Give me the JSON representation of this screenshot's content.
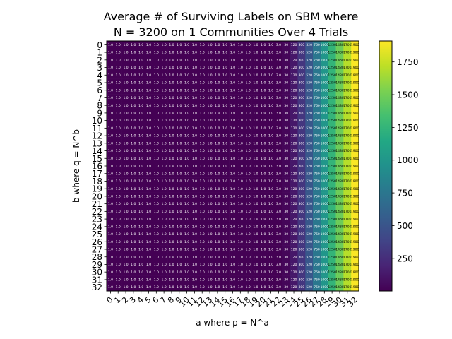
{
  "chart_data": {
    "type": "heatmap",
    "title_lines": [
      "Average # of Surviving Labels on SBM where",
      "N = 3200 on 1 Communities Over 4 Trials"
    ],
    "xlabel": "a where p = N^a",
    "ylabel": "b where q = N^b",
    "x_ticks": [
      0,
      1,
      2,
      3,
      4,
      5,
      6,
      7,
      8,
      9,
      10,
      11,
      12,
      13,
      14,
      15,
      16,
      17,
      18,
      19,
      20,
      21,
      22,
      23,
      24,
      25,
      26,
      27,
      28,
      29,
      30,
      31,
      32
    ],
    "y_ticks": [
      0,
      1,
      2,
      3,
      4,
      5,
      6,
      7,
      8,
      9,
      10,
      11,
      12,
      13,
      14,
      15,
      16,
      17,
      18,
      19,
      20,
      21,
      22,
      23,
      24,
      25,
      26,
      27,
      28,
      29,
      30,
      31,
      32
    ],
    "colorbar": {
      "colormap": "viridis",
      "vmin": 1.0,
      "vmax": 1910,
      "ticks": [
        "250",
        "500",
        "750",
        "1000",
        "1250",
        "1500",
        "1750"
      ]
    },
    "cell_label_note": "cells for a = 0..21 are 1.0; higher columns rise toward ~1900",
    "last_columns_values": {
      "a": [
        22,
        23,
        24,
        25,
        26,
        27,
        28,
        29,
        30,
        31,
        32
      ],
      "values": [
        3.0,
        30,
        120,
        300,
        520,
        760,
        1000,
        1250,
        1480,
        1700,
        1900
      ]
    }
  }
}
